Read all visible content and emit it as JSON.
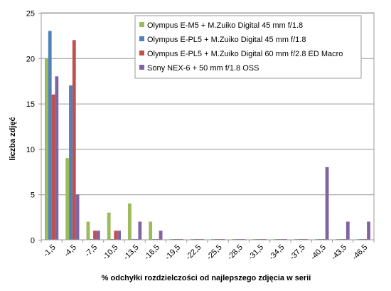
{
  "chart_data": {
    "type": "bar",
    "xlabel": "% odchyłki  rozdzielczości  od najlepszego  zdjęcia  w serii",
    "ylabel": "liczba zdjęć",
    "ylim": [
      0,
      25
    ],
    "yticks": [
      0,
      5,
      10,
      15,
      20,
      25
    ],
    "grid": true,
    "legend_position": "top-right",
    "categories": [
      "-1,5",
      "-4,5",
      "-7,5",
      "-10,5",
      "-13,5",
      "-16,5",
      "-19,5",
      "-22,5",
      "-25,5",
      "-28,5",
      "-31,5",
      "-34,5",
      "-37,5",
      "-40,5",
      "-43,5",
      "-46,5"
    ],
    "series": [
      {
        "name": "Olympus E-M5 + M.Zuiko  Digital  45 mm  f/1.8",
        "color": "#9bbb59",
        "values": [
          20,
          9,
          2,
          3,
          4,
          2,
          0,
          0,
          0,
          0,
          0,
          0,
          0,
          0,
          0,
          0
        ]
      },
      {
        "name": "Olympus E-PL5 + M.Zuiko  Digital  45 mm  f/1.8",
        "color": "#4f81bd",
        "values": [
          23,
          17,
          0,
          0,
          0,
          0,
          0,
          0,
          0,
          0,
          0,
          0,
          0,
          0,
          0,
          0
        ]
      },
      {
        "name": "Olympus E-PL5 + M.Zuiko  Digital  60 mm  f/2.8  ED Macro",
        "color": "#c0504d",
        "values": [
          16,
          22,
          1,
          1,
          0,
          0,
          0,
          0,
          0,
          0,
          0,
          0,
          0,
          0,
          0,
          0
        ]
      },
      {
        "name": "Sony NEX-6 + 50 mm  f/1.8  OSS",
        "color": "#8064a2",
        "values": [
          18,
          5,
          1,
          1,
          2,
          1,
          0,
          0,
          0,
          0,
          0,
          0,
          0,
          8,
          2,
          2
        ]
      }
    ]
  }
}
